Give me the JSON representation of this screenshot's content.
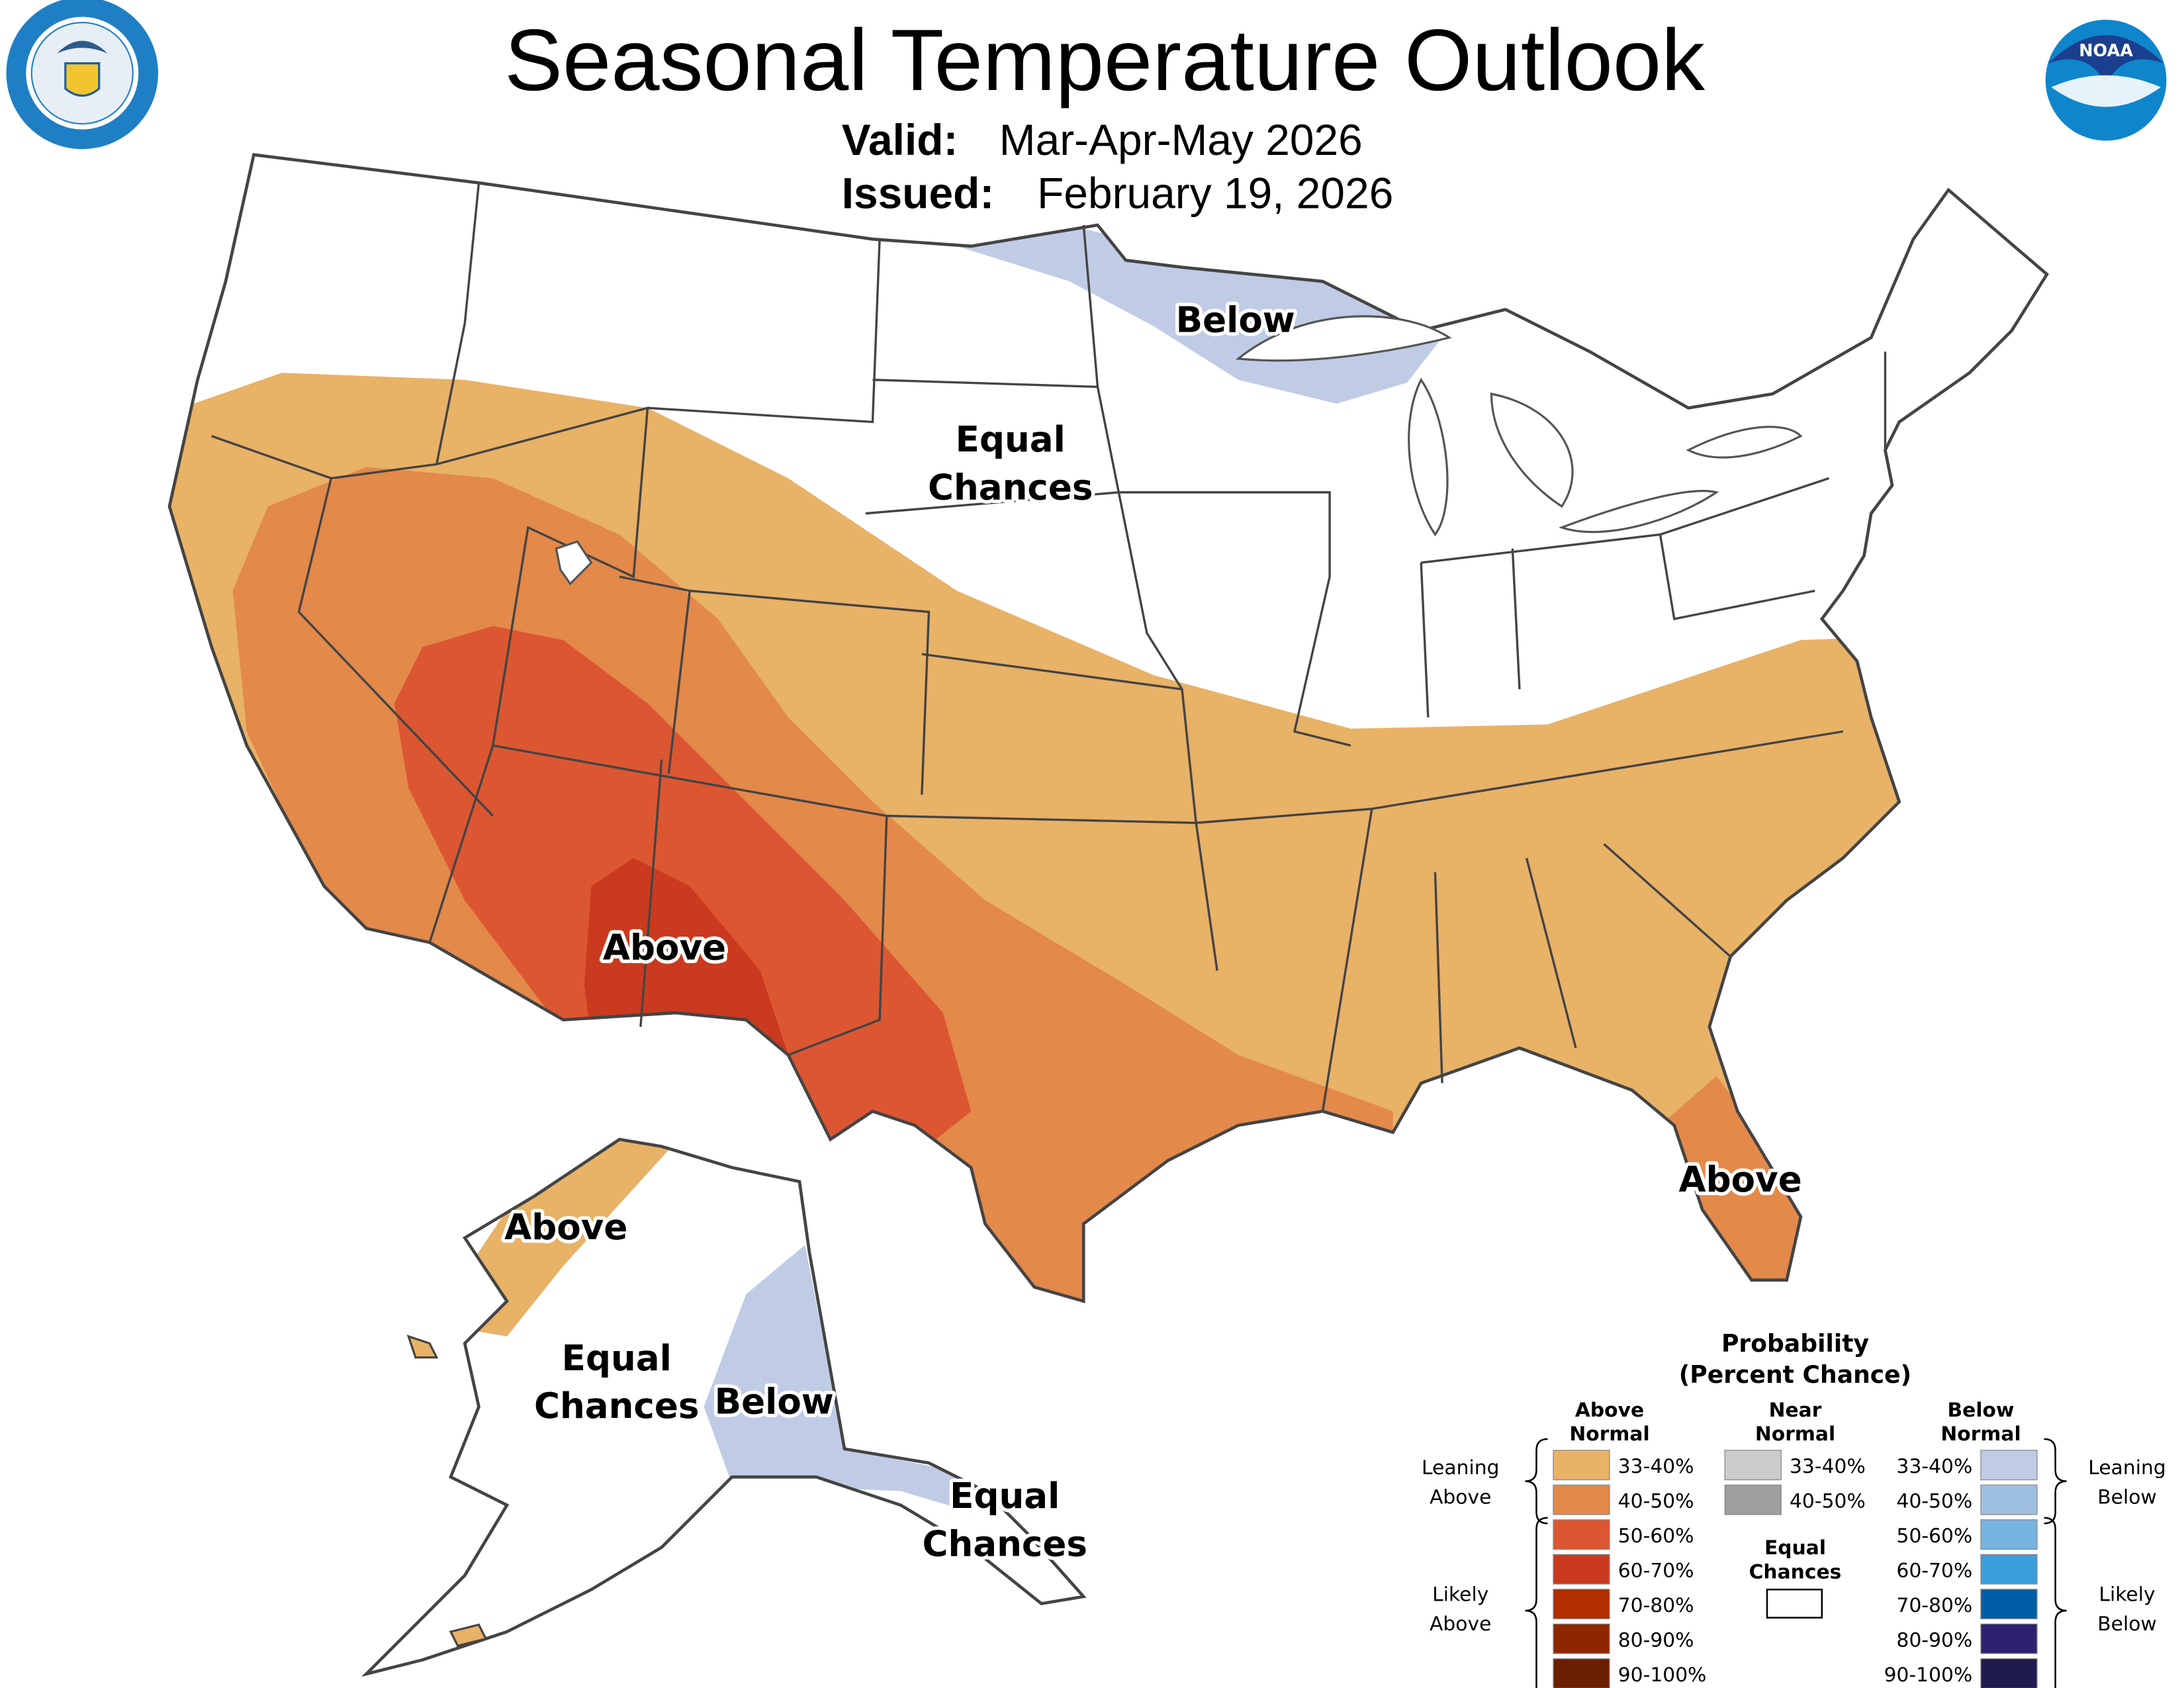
{
  "header": {
    "title": "Seasonal Temperature Outlook",
    "valid_label": "Valid:",
    "valid_value": "Mar-Apr-May 2026",
    "issued_label": "Issued:",
    "issued_value": "February 19, 2026",
    "left_logo": "Department of Commerce - United States of America",
    "right_logo": "NOAA"
  },
  "map": {
    "labels": {
      "conus_below": "Below",
      "conus_ec_1": "Equal",
      "conus_ec_2": "Chances",
      "conus_above_sw": "Above",
      "conus_above_fl": "Above",
      "ak_above": "Above",
      "ak_ec_1": "Equal",
      "ak_ec_2": "Chances",
      "ak_below": "Below",
      "ak_se_ec_1": "Equal",
      "ak_se_ec_2": "Chances"
    },
    "colors": {
      "land": "#ffffff",
      "border": "#444444",
      "above_33_40": "#e8b267",
      "above_40_50": "#e3894a",
      "above_50_60": "#dc5632",
      "above_60_70": "#c93a1e",
      "below_33_40": "#c0cce6"
    }
  },
  "legend": {
    "title_1": "Probability",
    "title_2": "(Percent Chance)",
    "above_header_1": "Above",
    "above_header_2": "Normal",
    "near_header_1": "Near",
    "near_header_2": "Normal",
    "below_header_1": "Below",
    "below_header_2": "Normal",
    "leaning_above_1": "Leaning",
    "leaning_above_2": "Above",
    "likely_above_1": "Likely",
    "likely_above_2": "Above",
    "leaning_below_1": "Leaning",
    "leaning_below_2": "Below",
    "likely_below_1": "Likely",
    "likely_below_2": "Below",
    "equal_chances_1": "Equal",
    "equal_chances_2": "Chances",
    "above": [
      {
        "range": "33-40%",
        "color": "#e8b267"
      },
      {
        "range": "40-50%",
        "color": "#e3894a"
      },
      {
        "range": "50-60%",
        "color": "#dc5632"
      },
      {
        "range": "60-70%",
        "color": "#c93a1e"
      },
      {
        "range": "70-80%",
        "color": "#b22d00"
      },
      {
        "range": "80-90%",
        "color": "#8e2600"
      },
      {
        "range": "90-100%",
        "color": "#6b1f00"
      }
    ],
    "near": [
      {
        "range": "33-40%",
        "color": "#cccccc"
      },
      {
        "range": "40-50%",
        "color": "#9e9e9e"
      }
    ],
    "below": [
      {
        "range": "33-40%",
        "color": "#c0cce6"
      },
      {
        "range": "40-50%",
        "color": "#9fbfe0"
      },
      {
        "range": "50-60%",
        "color": "#78b4e2"
      },
      {
        "range": "60-70%",
        "color": "#3a9fdc"
      },
      {
        "range": "70-80%",
        "color": "#005ea6"
      },
      {
        "range": "80-90%",
        "color": "#2e216f"
      },
      {
        "range": "90-100%",
        "color": "#1f1a4f"
      }
    ]
  }
}
